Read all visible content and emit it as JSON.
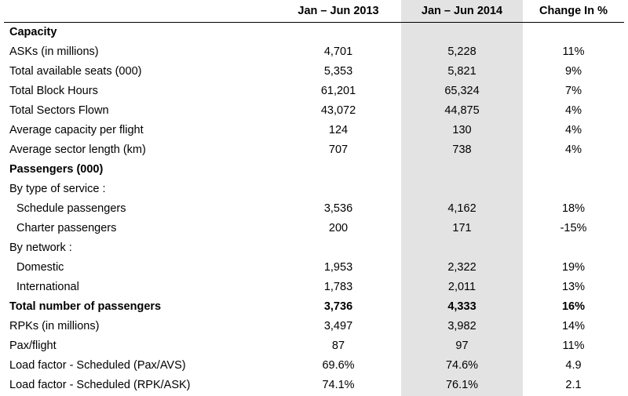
{
  "columns": [
    "",
    "Jan – Jun 2013",
    "Jan – Jun 2014",
    "Change In %"
  ],
  "rows": [
    {
      "label": "Capacity",
      "v2013": "",
      "v2014": "",
      "change": "",
      "style": "hdr"
    },
    {
      "label": "ASKs (in millions)",
      "v2013": "4,701",
      "v2014": "5,228",
      "change": "11%",
      "style": ""
    },
    {
      "label": "Total available seats (000)",
      "v2013": "5,353",
      "v2014": "5,821",
      "change": "9%",
      "style": ""
    },
    {
      "label": "Total Block Hours",
      "v2013": "61,201",
      "v2014": "65,324",
      "change": "7%",
      "style": ""
    },
    {
      "label": "Total Sectors Flown",
      "v2013": "43,072",
      "v2014": "44,875",
      "change": "4%",
      "style": ""
    },
    {
      "label": "Average capacity per flight",
      "v2013": "124",
      "v2014": "130",
      "change": "4%",
      "style": ""
    },
    {
      "label": "Average sector length (km)",
      "v2013": "707",
      "v2014": "738",
      "change": "4%",
      "style": ""
    },
    {
      "label": "Passengers (000)",
      "v2013": "",
      "v2014": "",
      "change": "",
      "style": "hdr"
    },
    {
      "label": "By type of service :",
      "v2013": "",
      "v2014": "",
      "change": "",
      "style": ""
    },
    {
      "label": "Schedule passengers",
      "v2013": "3,536",
      "v2014": "4,162",
      "change": "18%",
      "style": "indent"
    },
    {
      "label": "Charter passengers",
      "v2013": "200",
      "v2014": "171",
      "change": "-15%",
      "style": "indent"
    },
    {
      "label": "By network :",
      "v2013": "",
      "v2014": "",
      "change": "",
      "style": ""
    },
    {
      "label": "Domestic",
      "v2013": "1,953",
      "v2014": "2,322",
      "change": "19%",
      "style": "indent"
    },
    {
      "label": "International",
      "v2013": "1,783",
      "v2014": "2,011",
      "change": "13%",
      "style": "indent"
    },
    {
      "label": "Total number of passengers",
      "v2013": "3,736",
      "v2014": "4,333",
      "change": "16%",
      "style": "bold"
    },
    {
      "label": "RPKs (in millions)",
      "v2013": "3,497",
      "v2014": "3,982",
      "change": "14%",
      "style": ""
    },
    {
      "label": "Pax/flight",
      "v2013": "87",
      "v2014": "97",
      "change": "11%",
      "style": ""
    },
    {
      "label": "Load factor  - Scheduled (Pax/AVS)",
      "v2013": "69.6%",
      "v2014": "74.6%",
      "change": "4.9",
      "style": ""
    },
    {
      "label": "Load factor  - Scheduled (RPK/ASK)",
      "v2013": "74.1%",
      "v2014": "76.1%",
      "change": "2.1",
      "style": ""
    }
  ],
  "colors": {
    "shaded_column": "#e3e3e3",
    "text": "#000000",
    "background": "#ffffff"
  }
}
